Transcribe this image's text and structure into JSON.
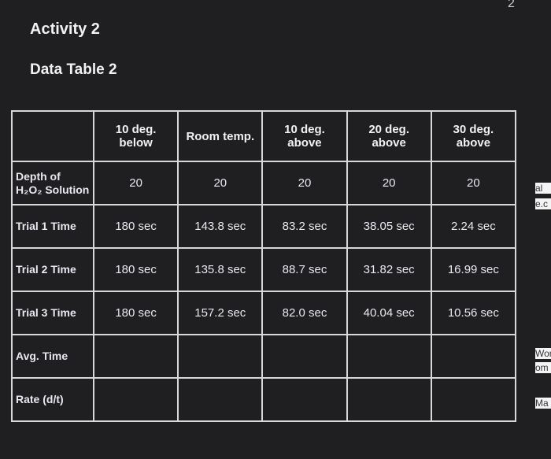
{
  "header": {
    "title": "Activity 2",
    "subtitle": "Data Table 2",
    "page_number": "2"
  },
  "table": {
    "columns": [
      "10 deg. below",
      "Room temp.",
      "10 deg. above",
      "20 deg. above",
      "30 deg. above"
    ],
    "rows": [
      {
        "label": "Depth of H₂O₂ Solution",
        "cells": [
          "20",
          "20",
          "20",
          "20",
          "20"
        ]
      },
      {
        "label": "Trial 1 Time",
        "cells": [
          "180 sec",
          "143.8 sec",
          "83.2 sec",
          "38.05 sec",
          "2.24 sec"
        ]
      },
      {
        "label": "Trial 2 Time",
        "cells": [
          "180 sec",
          "135.8 sec",
          "88.7 sec",
          "31.82 sec",
          "16.99 sec"
        ]
      },
      {
        "label": "Trial 3 Time",
        "cells": [
          "180 sec",
          "157.2 sec",
          "82.0 sec",
          "40.04 sec",
          "10.56 sec"
        ]
      },
      {
        "label": "Avg. Time",
        "cells": []
      },
      {
        "label": "Rate (d/t)",
        "cells": []
      }
    ]
  },
  "side_fragments": [
    "al",
    "e.c",
    "Wor",
    "om",
    "Ma"
  ]
}
